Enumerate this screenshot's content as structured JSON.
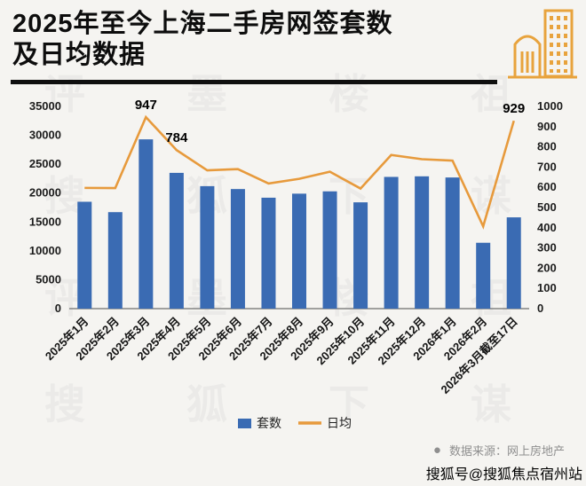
{
  "header": {
    "title_line1": "2025年至今上海二手房网签套数",
    "title_line2": "及日均数据",
    "building_icon_color": "#E8A33D"
  },
  "chart_data": {
    "type": "bar+line",
    "categories": [
      "2025年1月",
      "2025年2月",
      "2025年3月",
      "2025年4月",
      "2025年5月",
      "2025年6月",
      "2025年7月",
      "2025年8月",
      "2025年9月",
      "2025年10月",
      "2025年11月",
      "2025年12月",
      "2026年1月",
      "2026年2月",
      "2026年3月截至17日"
    ],
    "series": [
      {
        "name": "套数",
        "type": "bar",
        "axis": "left",
        "color": "#3A6BB3",
        "values": [
          18500,
          16700,
          29300,
          23500,
          21200,
          20700,
          19200,
          19900,
          20300,
          18400,
          22800,
          22900,
          22700,
          11400,
          15800
        ]
      },
      {
        "name": "日均",
        "type": "line",
        "axis": "right",
        "color": "#E79A3C",
        "values": [
          597,
          596,
          947,
          784,
          684,
          690,
          619,
          642,
          677,
          594,
          760,
          739,
          732,
          407,
          929
        ]
      }
    ],
    "left_axis": {
      "min": 0,
      "max": 35000,
      "step": 5000
    },
    "right_axis": {
      "min": 0,
      "max": 1000,
      "step": 100
    },
    "data_labels": [
      {
        "index": 2,
        "text": "947"
      },
      {
        "index": 3,
        "text": "784"
      },
      {
        "index": 14,
        "text": "929"
      }
    ],
    "legend": [
      "套数",
      "日均"
    ],
    "grid": false,
    "legend_position": "bottom-center"
  },
  "footer": {
    "source_label": "数据来源：网上房地产",
    "watermark_account": "搜狐号@搜狐焦点宿州站"
  },
  "watermark": {
    "chars": [
      "评",
      "墨",
      "楼",
      "祖",
      "搜",
      "狐",
      "下",
      "谋"
    ]
  }
}
